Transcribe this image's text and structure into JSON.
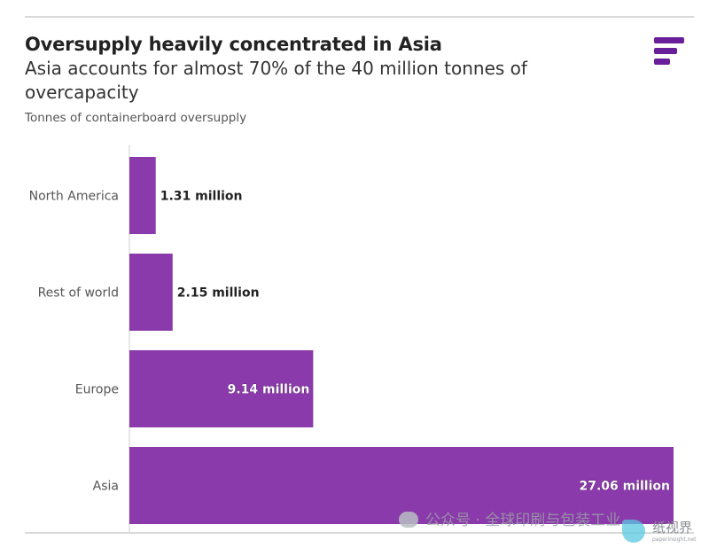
{
  "header": {
    "title": "Oversupply heavily concentrated in Asia",
    "subtitle": "Asia accounts for almost 70% of the 40 million tonnes of overcapacity",
    "caption": "Tonnes of containerboard oversupply"
  },
  "brand": {
    "logo_icon": "ft-logo-icon",
    "color": "#6a1f9a"
  },
  "chart_data": {
    "type": "bar",
    "orientation": "horizontal",
    "categories": [
      "North America",
      "Rest of world",
      "Europe",
      "Asia"
    ],
    "values": [
      1.31,
      2.15,
      9.14,
      27.06
    ],
    "unit": "million tonnes",
    "data_labels": [
      "1.31 million",
      "2.15 million",
      "9.14 million",
      "27.06 million"
    ],
    "title": "Oversupply heavily concentrated in Asia",
    "subtitle": "Asia accounts for almost 70% of the 40 million tonnes of overcapacity",
    "xlabel": "",
    "ylabel": "Tonnes of containerboard oversupply",
    "xlim": [
      0,
      27.06
    ],
    "grid": false,
    "bar_color": "#8a3aaa",
    "label_dark_color": "#222222",
    "label_light_color": "#ffffff"
  },
  "watermark": {
    "text": "公众号 · 全球印刷与包装工业",
    "brand_text": "纸视界",
    "brand_sub": "paperinsight.net"
  }
}
